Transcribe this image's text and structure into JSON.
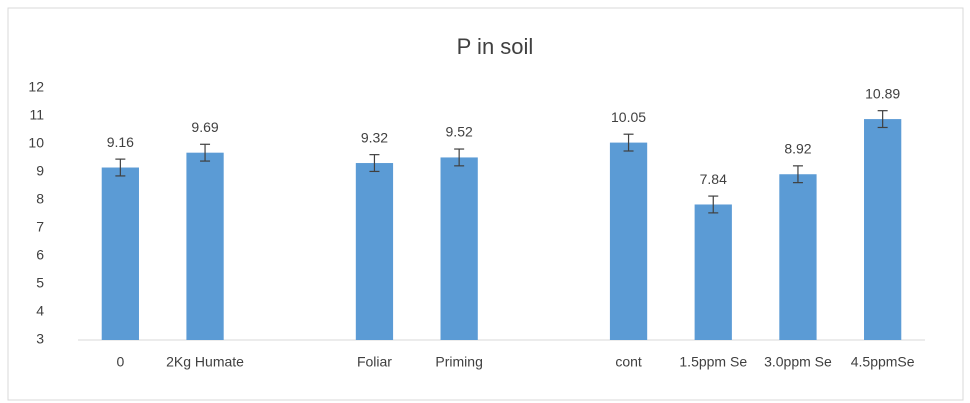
{
  "chart_data": {
    "type": "bar",
    "title": "P in soil",
    "categories": [
      "0",
      "2Kg Humate",
      null,
      "Foliar",
      "Priming",
      null,
      "cont",
      "1.5ppm Se",
      "3.0ppm Se",
      "4.5ppmSe"
    ],
    "values": [
      9.16,
      9.69,
      null,
      9.32,
      9.52,
      null,
      10.05,
      7.84,
      8.92,
      10.89
    ],
    "errors": [
      0.3,
      0.3,
      null,
      0.3,
      0.3,
      null,
      0.3,
      0.3,
      0.3,
      0.3
    ],
    "color": "#5b9bd5",
    "ylim": [
      3,
      12
    ],
    "yticks": [
      3,
      4,
      5,
      6,
      7,
      8,
      9,
      10,
      11,
      12
    ],
    "grid": false
  }
}
